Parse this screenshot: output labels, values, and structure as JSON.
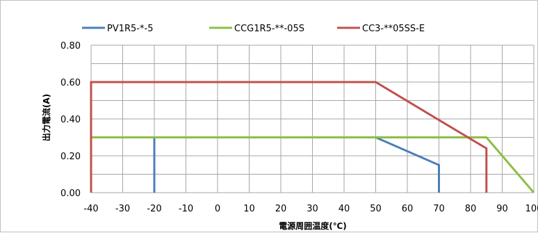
{
  "chart_data": {
    "type": "line",
    "xlabel": "電源周囲温度(℃)",
    "ylabel": "出力電流(A)",
    "xlim": [
      -40,
      100
    ],
    "ylim": [
      0,
      0.8
    ],
    "x_ticks": [
      "-40",
      "-30",
      "-20",
      "-10",
      "0",
      "10",
      "20",
      "30",
      "40",
      "50",
      "60",
      "70",
      "80",
      "90",
      "100"
    ],
    "y_ticks": [
      "0.00",
      "0.20",
      "0.40",
      "0.60",
      "0.80"
    ],
    "grid": true,
    "legend_position": "top",
    "series": [
      {
        "name": "PV1R5-*-5",
        "color": "#4a7ebb",
        "points": [
          [
            -20,
            0
          ],
          [
            -20,
            0.3
          ],
          [
            50,
            0.3
          ],
          [
            70,
            0.15
          ],
          [
            70,
            0
          ]
        ]
      },
      {
        "name": "CCG1R5-**-05S",
        "color": "#8cbf44",
        "points": [
          [
            -40,
            0.3
          ],
          [
            85,
            0.3
          ],
          [
            100,
            0
          ]
        ]
      },
      {
        "name": "CC3-**05SS-E",
        "color": "#c0504d",
        "points": [
          [
            -40,
            0
          ],
          [
            -40,
            0.6
          ],
          [
            50,
            0.6
          ],
          [
            85,
            0.24
          ],
          [
            85,
            0
          ]
        ]
      }
    ]
  }
}
